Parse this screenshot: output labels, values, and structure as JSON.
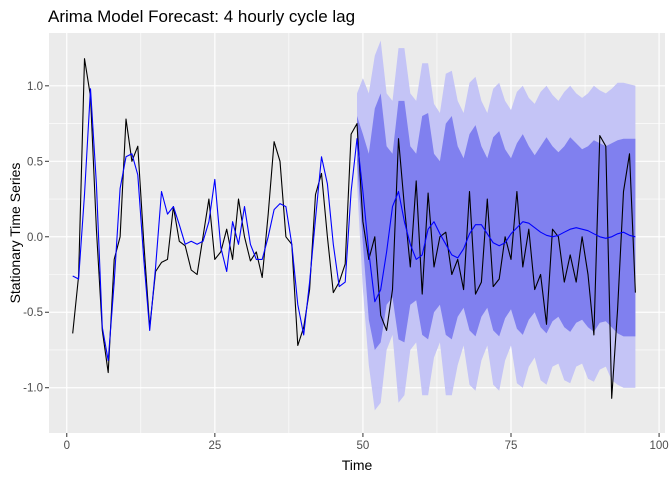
{
  "chart_data": {
    "type": "line",
    "title": "Arima Model Forecast: 4 hourly cycle lag",
    "xlabel": "Time",
    "ylabel": "Stationary Time Series",
    "xlim": [
      -3,
      101
    ],
    "ylim": [
      -1.3,
      1.35
    ],
    "x_ticks": [
      0,
      25,
      50,
      75,
      100
    ],
    "x_minor_ticks": [
      12.5,
      37.5,
      62.5,
      87.5
    ],
    "y_ticks": [
      -1.0,
      -0.5,
      0.0,
      0.5,
      1.0
    ],
    "y_tick_labels": [
      "-1.0",
      "-0.5",
      "0.0",
      "0.5",
      "1.0"
    ],
    "y_minor_ticks": [
      -0.75,
      -0.25,
      0.25,
      0.75
    ],
    "grid": true,
    "legend": "none",
    "colors": {
      "panel_background": "#ebebeb",
      "grid_major": "#ffffff",
      "actual_line": "#000000",
      "fitted_forecast_line": "#0000ff",
      "band_95": "#c4c4f6",
      "band_80": "#8080ef"
    },
    "series": [
      {
        "x": [
          1,
          2,
          3,
          4,
          5,
          6,
          7,
          8,
          9,
          10,
          11,
          12,
          13,
          14,
          15,
          16,
          17,
          18,
          19,
          20,
          21,
          22,
          23,
          24,
          25,
          26,
          27,
          28,
          29,
          30,
          31,
          32,
          33,
          34,
          35,
          36,
          37,
          38,
          39,
          40,
          41,
          42,
          43,
          44,
          45,
          46,
          47,
          48,
          49,
          50,
          51,
          52,
          53,
          54,
          55,
          56,
          57,
          58,
          59,
          60,
          61,
          62,
          63,
          64,
          65,
          66,
          67,
          68,
          69,
          70,
          71,
          72,
          73,
          74,
          75,
          76,
          77,
          78,
          79,
          80,
          81,
          82,
          83,
          84,
          85,
          86,
          87,
          88,
          89,
          90,
          91,
          92,
          93,
          94,
          95,
          96
        ],
        "values": [
          -0.64,
          -0.26,
          1.18,
          0.93,
          0.05,
          -0.62,
          -0.9,
          -0.15,
          0.0,
          0.78,
          0.5,
          0.6,
          -0.04,
          -0.6,
          -0.23,
          -0.17,
          -0.15,
          0.2,
          -0.03,
          -0.06,
          -0.22,
          -0.25,
          0.0,
          0.25,
          -0.15,
          -0.1,
          0.05,
          -0.15,
          0.25,
          0.0,
          -0.16,
          -0.1,
          -0.27,
          0.15,
          0.63,
          0.5,
          0.0,
          -0.05,
          -0.72,
          -0.6,
          -0.35,
          0.28,
          0.42,
          0.0,
          -0.37,
          -0.3,
          -0.18,
          0.68,
          0.75,
          0.1,
          -0.15,
          0.0,
          -0.52,
          -0.62,
          -0.35,
          0.65,
          0.2,
          -0.2,
          0.37,
          -0.38,
          0.29,
          -0.2,
          0.0,
          0.03,
          -0.25,
          -0.15,
          -0.35,
          0.3,
          -0.38,
          -0.3,
          0.25,
          -0.33,
          -0.28,
          0.0,
          -0.15,
          0.3,
          -0.2,
          0.05,
          -0.35,
          -0.25,
          -0.58,
          0.05,
          0.0,
          -0.3,
          -0.12,
          -0.3,
          0.0,
          -0.25,
          -0.65,
          0.67,
          0.6,
          -1.07,
          -0.48,
          0.3,
          0.55,
          -0.37
        ]
      },
      {
        "x": [
          1,
          2,
          3,
          4,
          5,
          6,
          7,
          8,
          9,
          10,
          11,
          12,
          13,
          14,
          15,
          16,
          17,
          18,
          19,
          20,
          21,
          22,
          23,
          24,
          25,
          26,
          27,
          28,
          29,
          30,
          31,
          32,
          33,
          34,
          35,
          36,
          37,
          38,
          39,
          40,
          41,
          42,
          43,
          44,
          45,
          46,
          47,
          48,
          49,
          50,
          51,
          52,
          53,
          54,
          55,
          56,
          57,
          58,
          59,
          60,
          61,
          62,
          63,
          64,
          65,
          66,
          67,
          68,
          69,
          70,
          71,
          72,
          73,
          74,
          75,
          76,
          77,
          78,
          79,
          80,
          81,
          82,
          83,
          84,
          85,
          86,
          87,
          88,
          89,
          90,
          91,
          92,
          93,
          94,
          95,
          96
        ],
        "values": [
          -0.26,
          -0.28,
          0.28,
          0.98,
          0.35,
          -0.6,
          -0.82,
          -0.3,
          0.32,
          0.53,
          0.55,
          0.41,
          -0.15,
          -0.62,
          -0.2,
          0.3,
          0.15,
          0.2,
          0.08,
          -0.05,
          -0.03,
          -0.05,
          -0.03,
          0.1,
          0.38,
          -0.07,
          -0.23,
          0.1,
          -0.05,
          0.2,
          -0.05,
          -0.15,
          -0.15,
          0.0,
          0.18,
          0.22,
          0.2,
          -0.05,
          -0.45,
          -0.65,
          -0.3,
          0.12,
          0.53,
          0.35,
          -0.05,
          -0.33,
          -0.3,
          0.3,
          0.65,
          0.3,
          -0.1,
          -0.43,
          -0.35,
          -0.1,
          0.2,
          0.3,
          0.1,
          -0.05,
          -0.15,
          -0.12,
          0.05,
          0.1,
          0.02,
          -0.05,
          -0.12,
          -0.14,
          -0.08,
          0.02,
          0.08,
          0.08,
          0.02,
          -0.04,
          -0.06,
          -0.04,
          0.02,
          0.06,
          0.1,
          0.09,
          0.06,
          0.03,
          0.01,
          0.0,
          0.01,
          0.03,
          0.05,
          0.06,
          0.05,
          0.04,
          0.02,
          0.0,
          -0.01,
          0.0,
          0.02,
          0.03,
          0.01,
          0.0
        ]
      }
    ],
    "forecast_bands": {
      "x": [
        49,
        50,
        51,
        52,
        53,
        54,
        55,
        56,
        57,
        58,
        59,
        60,
        61,
        62,
        63,
        64,
        65,
        66,
        67,
        68,
        69,
        70,
        71,
        72,
        73,
        74,
        75,
        76,
        77,
        78,
        79,
        80,
        81,
        82,
        83,
        84,
        85,
        86,
        87,
        88,
        89,
        90,
        91,
        92,
        93,
        94,
        95,
        96
      ],
      "lo95": [
        0.35,
        -0.35,
        -0.85,
        -1.15,
        -1.1,
        -0.75,
        -0.65,
        -1.1,
        -1.05,
        -0.75,
        -0.7,
        -1.05,
        -1.05,
        -0.8,
        -0.7,
        -1.05,
        -1.05,
        -0.85,
        -0.72,
        -0.98,
        -1.02,
        -0.82,
        -0.72,
        -0.98,
        -1.02,
        -0.82,
        -0.72,
        -0.97,
        -1.0,
        -0.86,
        -0.8,
        -0.95,
        -0.98,
        -0.86,
        -0.84,
        -0.95,
        -0.97,
        -0.86,
        -0.84,
        -0.94,
        -0.96,
        -0.88,
        -0.86,
        -0.95,
        -0.98,
        -1.0,
        -1.0,
        -1.0
      ],
      "lo80": [
        0.5,
        -0.05,
        -0.55,
        -0.75,
        -0.7,
        -0.45,
        -0.4,
        -0.68,
        -0.7,
        -0.45,
        -0.42,
        -0.65,
        -0.68,
        -0.5,
        -0.45,
        -0.65,
        -0.68,
        -0.53,
        -0.47,
        -0.62,
        -0.66,
        -0.53,
        -0.47,
        -0.62,
        -0.66,
        -0.54,
        -0.48,
        -0.61,
        -0.65,
        -0.55,
        -0.5,
        -0.6,
        -0.64,
        -0.56,
        -0.53,
        -0.6,
        -0.63,
        -0.57,
        -0.55,
        -0.6,
        -0.63,
        -0.57,
        -0.56,
        -0.6,
        -0.64,
        -0.66,
        -0.66,
        -0.66
      ],
      "hi80": [
        0.8,
        0.68,
        0.55,
        0.85,
        0.95,
        0.6,
        0.55,
        0.9,
        0.9,
        0.6,
        0.55,
        0.8,
        0.82,
        0.55,
        0.5,
        0.75,
        0.8,
        0.6,
        0.52,
        0.68,
        0.74,
        0.6,
        0.52,
        0.66,
        0.7,
        0.58,
        0.52,
        0.62,
        0.68,
        0.6,
        0.54,
        0.6,
        0.66,
        0.6,
        0.56,
        0.6,
        0.66,
        0.62,
        0.58,
        0.6,
        0.64,
        0.62,
        0.6,
        0.62,
        0.64,
        0.65,
        0.65,
        0.65
      ],
      "hi95": [
        0.95,
        1.05,
        0.95,
        1.2,
        1.3,
        0.95,
        0.9,
        1.25,
        1.25,
        0.95,
        0.9,
        1.15,
        1.15,
        0.88,
        0.82,
        1.08,
        1.1,
        0.9,
        0.82,
        1.02,
        1.06,
        0.9,
        0.82,
        0.98,
        1.02,
        0.9,
        0.84,
        0.96,
        1.0,
        0.92,
        0.88,
        0.96,
        1.0,
        0.94,
        0.9,
        0.96,
        1.0,
        0.95,
        0.92,
        0.95,
        1.0,
        0.97,
        0.95,
        0.98,
        1.02,
        1.02,
        1.01,
        1.0
      ]
    }
  }
}
